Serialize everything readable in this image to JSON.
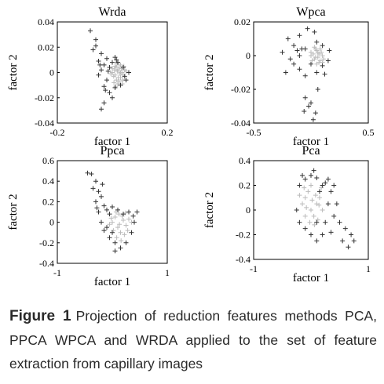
{
  "caption": {
    "label": "Figure 1",
    "text": "Projection of reduction features methods PCA, PPCA WPCA and WRDA applied to the set of feature extraction from capillary images"
  },
  "chart_data": [
    {
      "type": "scatter",
      "title": "Wrda",
      "xlabel": "factor 1",
      "ylabel": "factor 2",
      "xlim": [
        -0.2,
        0.2
      ],
      "ylim": [
        -0.04,
        0.04
      ],
      "xticks": [
        "-0.2",
        "0.2"
      ],
      "yticks": [
        "0.04",
        "0.02",
        "0",
        "-0.02",
        "-0.04"
      ],
      "series": [
        {
          "color": "#bbbbbb",
          "points": [
            [
              0.0,
              0.0
            ],
            [
              0.01,
              -0.002
            ],
            [
              0.02,
              0.002
            ],
            [
              0.03,
              -0.004
            ],
            [
              0.015,
              -0.006
            ],
            [
              0.025,
              0.004
            ],
            [
              0.005,
              -0.003
            ],
            [
              0.035,
              0.0
            ],
            [
              0.01,
              0.005
            ],
            [
              0.04,
              -0.002
            ],
            [
              0.02,
              -0.009
            ],
            [
              0.0,
              0.003
            ],
            [
              0.03,
              0.006
            ],
            [
              0.045,
              0.002
            ],
            [
              0.012,
              -0.011
            ],
            [
              0.028,
              -0.001
            ],
            [
              0.018,
              0.001
            ],
            [
              0.038,
              -0.006
            ],
            [
              0.008,
              0.002
            ],
            [
              0.022,
              -0.004
            ],
            [
              -0.005,
              -0.001
            ],
            [
              0.05,
              0.001
            ],
            [
              0.033,
              0.003
            ],
            [
              0.017,
              0.007
            ],
            [
              0.025,
              -0.007
            ],
            [
              0.042,
              0.005
            ],
            [
              0.006,
              -0.008
            ],
            [
              0.036,
              -0.009
            ],
            [
              0.014,
              0.004
            ],
            [
              0.03,
              0.0
            ]
          ]
        },
        {
          "color": "#333333",
          "points": [
            [
              -0.08,
              0.033
            ],
            [
              -0.06,
              0.026
            ],
            [
              -0.07,
              0.018
            ],
            [
              -0.04,
              0.015
            ],
            [
              -0.05,
              0.009
            ],
            [
              -0.03,
              0.006
            ],
            [
              -0.02,
              0.011
            ],
            [
              -0.01,
              0.004
            ],
            [
              -0.04,
              0.002
            ],
            [
              -0.05,
              -0.002
            ],
            [
              -0.02,
              -0.006
            ],
            [
              -0.03,
              -0.011
            ],
            [
              -0.01,
              -0.016
            ],
            [
              0.0,
              -0.02
            ],
            [
              -0.04,
              -0.029
            ],
            [
              -0.03,
              -0.024
            ],
            [
              0.0,
              0.008
            ],
            [
              0.01,
              0.012
            ],
            [
              0.02,
              0.008
            ],
            [
              0.04,
              0.004
            ],
            [
              0.06,
              0.0
            ],
            [
              0.05,
              -0.006
            ],
            [
              0.03,
              -0.01
            ],
            [
              0.01,
              -0.012
            ],
            [
              -0.06,
              0.021
            ],
            [
              -0.015,
              0.001
            ],
            [
              0.015,
              0.01
            ],
            [
              -0.025,
              -0.014
            ],
            [
              -0.045,
              0.006
            ],
            [
              0.045,
              -0.003
            ]
          ]
        }
      ]
    },
    {
      "type": "scatter",
      "title": "Wpca",
      "xlabel": "factor 1",
      "ylabel": "factor 2",
      "xlim": [
        -0.5,
        0.5
      ],
      "ylim": [
        -0.04,
        0.02
      ],
      "xticks": [
        "-0.5",
        "0.5"
      ],
      "yticks": [
        "0.02",
        "0",
        "-0.02",
        "-0.04"
      ],
      "series": [
        {
          "color": "#bbbbbb",
          "points": [
            [
              0.0,
              0.0
            ],
            [
              0.03,
              -0.002
            ],
            [
              0.06,
              0.002
            ],
            [
              0.08,
              -0.003
            ],
            [
              0.05,
              0.003
            ],
            [
              0.02,
              0.001
            ],
            [
              0.1,
              0.0
            ],
            [
              0.07,
              -0.004
            ],
            [
              0.04,
              0.004
            ],
            [
              0.09,
              0.002
            ],
            [
              0.01,
              -0.003
            ],
            [
              0.06,
              -0.001
            ],
            [
              0.11,
              -0.002
            ],
            [
              0.03,
              0.005
            ],
            [
              0.05,
              -0.005
            ],
            [
              0.08,
              0.004
            ],
            [
              0.0,
              0.002
            ],
            [
              0.1,
              -0.004
            ],
            [
              0.04,
              -0.001
            ],
            [
              0.07,
              0.001
            ]
          ]
        },
        {
          "color": "#333333",
          "points": [
            [
              -0.2,
              0.01
            ],
            [
              -0.15,
              0.006
            ],
            [
              -0.1,
              0.012
            ],
            [
              -0.05,
              0.004
            ],
            [
              -0.1,
              0.0
            ],
            [
              -0.18,
              -0.002
            ],
            [
              -0.15,
              -0.005
            ],
            [
              -0.1,
              -0.008
            ],
            [
              -0.05,
              -0.012
            ],
            [
              0.0,
              -0.005
            ],
            [
              0.05,
              -0.01
            ],
            [
              0.1,
              -0.006
            ],
            [
              0.15,
              -0.003
            ],
            [
              0.1,
              0.006
            ],
            [
              0.05,
              0.008
            ],
            [
              -0.03,
              0.016
            ],
            [
              -0.25,
              0.002
            ],
            [
              -0.22,
              -0.01
            ],
            [
              -0.05,
              -0.025
            ],
            [
              -0.02,
              -0.03
            ],
            [
              0.0,
              -0.028
            ],
            [
              0.04,
              -0.034
            ],
            [
              0.02,
              -0.038
            ],
            [
              -0.06,
              -0.033
            ],
            [
              0.06,
              -0.02
            ],
            [
              0.12,
              -0.011
            ],
            [
              0.16,
              0.003
            ],
            [
              -0.08,
              0.004
            ],
            [
              -0.12,
              0.003
            ],
            [
              0.03,
              0.014
            ]
          ]
        }
      ]
    },
    {
      "type": "scatter",
      "title": "Ppca",
      "xlabel": "factor 1",
      "ylabel": "factor 2",
      "xlim": [
        -1,
        1
      ],
      "ylim": [
        -0.4,
        0.6
      ],
      "xticks": [
        "-1",
        "1"
      ],
      "yticks": [
        "0.6",
        "0.4",
        "0.2",
        "0",
        "-0.2",
        "-0.4"
      ],
      "series": [
        {
          "color": "#bbbbbb",
          "points": [
            [
              0.0,
              0.0
            ],
            [
              0.1,
              -0.05
            ],
            [
              0.2,
              0.02
            ],
            [
              0.15,
              -0.1
            ],
            [
              0.05,
              0.05
            ],
            [
              0.25,
              -0.03
            ],
            [
              -0.05,
              -0.02
            ],
            [
              0.3,
              0.03
            ],
            [
              0.12,
              0.08
            ],
            [
              0.22,
              -0.12
            ],
            [
              0.08,
              -0.15
            ],
            [
              0.18,
              0.06
            ],
            [
              0.28,
              -0.08
            ],
            [
              0.02,
              -0.08
            ],
            [
              0.35,
              0.0
            ],
            [
              0.13,
              -0.02
            ],
            [
              0.07,
              0.1
            ],
            [
              0.24,
              0.09
            ],
            [
              -0.02,
              0.04
            ],
            [
              0.16,
              -0.18
            ]
          ]
        },
        {
          "color": "#333333",
          "points": [
            [
              -0.45,
              0.48
            ],
            [
              -0.38,
              0.47
            ],
            [
              -0.3,
              0.4
            ],
            [
              -0.35,
              0.33
            ],
            [
              -0.25,
              0.3
            ],
            [
              -0.2,
              0.25
            ],
            [
              -0.3,
              0.2
            ],
            [
              -0.15,
              0.16
            ],
            [
              -0.25,
              0.1
            ],
            [
              -0.1,
              0.12
            ],
            [
              -0.05,
              0.08
            ],
            [
              -0.2,
              0.0
            ],
            [
              -0.1,
              -0.05
            ],
            [
              0.0,
              -0.1
            ],
            [
              -0.15,
              -0.08
            ],
            [
              0.1,
              0.12
            ],
            [
              0.2,
              0.08
            ],
            [
              0.3,
              0.1
            ],
            [
              0.45,
              0.1
            ],
            [
              0.4,
              0.0
            ],
            [
              0.35,
              -0.1
            ],
            [
              0.25,
              -0.2
            ],
            [
              0.15,
              -0.25
            ],
            [
              0.05,
              -0.2
            ],
            [
              -0.05,
              -0.15
            ],
            [
              0.0,
              0.15
            ],
            [
              -0.18,
              0.37
            ],
            [
              0.05,
              -0.28
            ],
            [
              0.38,
              0.06
            ],
            [
              -0.28,
              0.14
            ]
          ]
        }
      ]
    },
    {
      "type": "scatter",
      "title": "Pca",
      "xlabel": "factor 1",
      "ylabel": "factor 2",
      "xlim": [
        -1,
        1
      ],
      "ylim": [
        -0.4,
        0.4
      ],
      "xticks": [
        "-1",
        "1"
      ],
      "yticks": [
        "0.4",
        "0.2",
        "0",
        "-0.2",
        "-0.4"
      ],
      "series": [
        {
          "color": "#bbbbbb",
          "points": [
            [
              0.0,
              0.0
            ],
            [
              0.1,
              0.05
            ],
            [
              -0.1,
              0.1
            ],
            [
              0.05,
              -0.05
            ],
            [
              -0.05,
              0.15
            ],
            [
              0.15,
              0.1
            ],
            [
              0.0,
              0.2
            ],
            [
              -0.15,
              0.05
            ],
            [
              0.2,
              0.0
            ],
            [
              -0.1,
              -0.05
            ],
            [
              0.08,
              0.12
            ],
            [
              -0.2,
              0.12
            ],
            [
              0.12,
              -0.08
            ],
            [
              0.02,
              0.08
            ],
            [
              -0.08,
              0.02
            ],
            [
              0.18,
              0.18
            ],
            [
              -0.12,
              0.18
            ],
            [
              0.06,
              -0.12
            ],
            [
              -0.02,
              -0.1
            ],
            [
              0.14,
              0.04
            ]
          ]
        },
        {
          "color": "#333333",
          "points": [
            [
              0.05,
              0.32
            ],
            [
              0.1,
              0.26
            ],
            [
              0.2,
              0.2
            ],
            [
              0.3,
              0.25
            ],
            [
              0.35,
              0.15
            ],
            [
              0.3,
              0.05
            ],
            [
              0.4,
              -0.05
            ],
            [
              0.5,
              -0.1
            ],
            [
              0.6,
              -0.15
            ],
            [
              0.7,
              -0.2
            ],
            [
              0.75,
              -0.25
            ],
            [
              0.25,
              -0.1
            ],
            [
              0.2,
              -0.2
            ],
            [
              0.1,
              -0.25
            ],
            [
              0.0,
              -0.2
            ],
            [
              -0.1,
              -0.15
            ],
            [
              -0.2,
              -0.1
            ],
            [
              -0.25,
              0.0
            ],
            [
              -0.2,
              0.2
            ],
            [
              -0.1,
              0.25
            ],
            [
              0.0,
              0.28
            ],
            [
              0.15,
              0.15
            ],
            [
              0.1,
              -0.1
            ],
            [
              0.4,
              0.2
            ],
            [
              0.45,
              0.05
            ],
            [
              0.55,
              -0.25
            ],
            [
              0.65,
              -0.3
            ],
            [
              0.35,
              -0.18
            ],
            [
              -0.15,
              0.28
            ],
            [
              0.25,
              0.22
            ]
          ]
        }
      ]
    }
  ]
}
